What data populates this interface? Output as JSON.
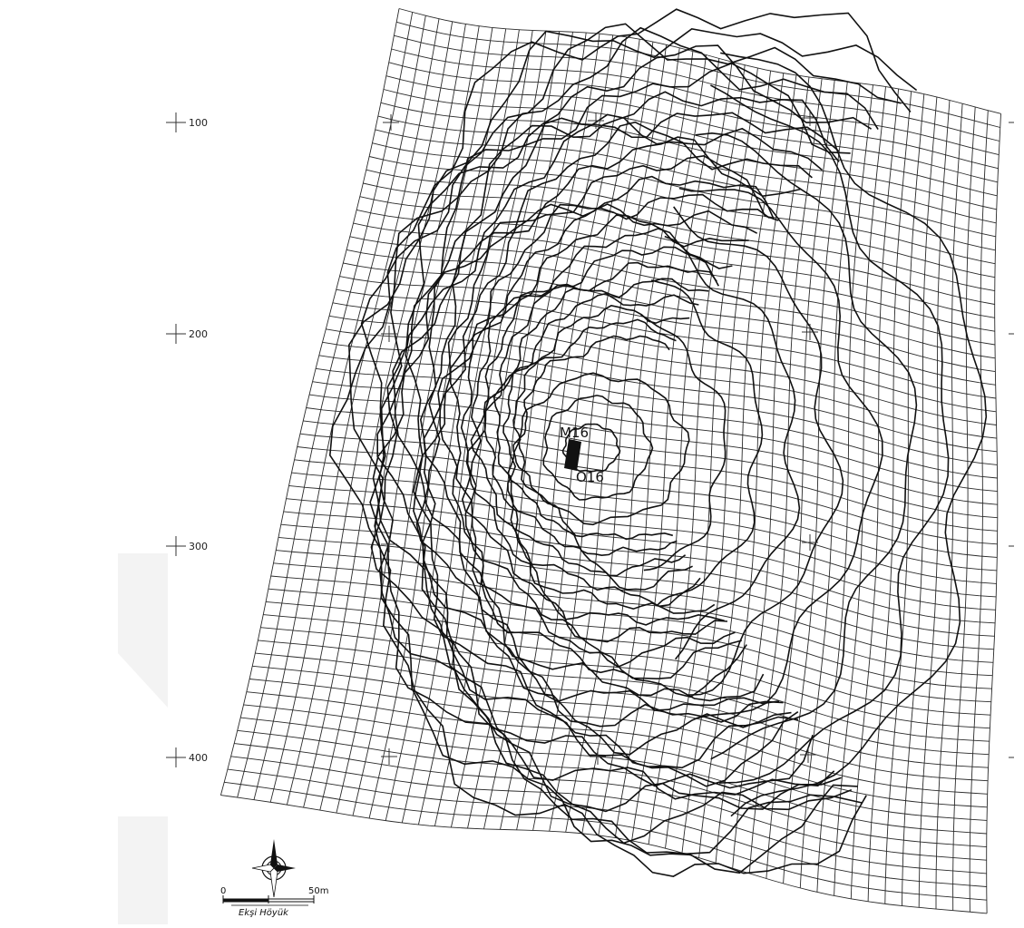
{
  "map": {
    "axis_labels": [
      "100",
      "200",
      "300",
      "400"
    ],
    "trench_labels": [
      "M16",
      "O16"
    ],
    "scale": {
      "start": "0",
      "end": "50m",
      "site": "Ekşi Höyük"
    }
  },
  "colors": {
    "ink": "#111111",
    "grid": "#2a2a2a",
    "watermark": "#f3f3f3"
  }
}
